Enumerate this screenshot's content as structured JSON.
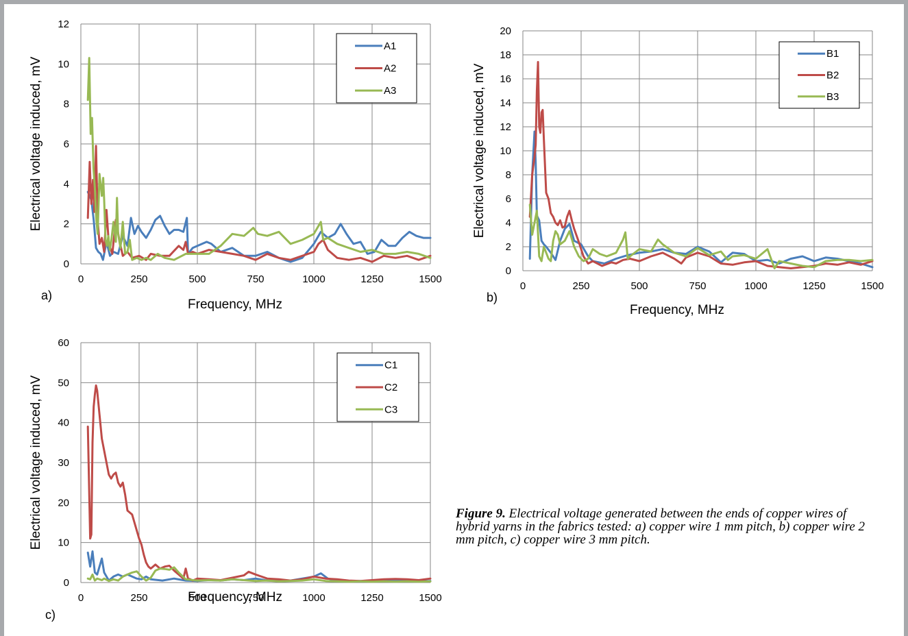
{
  "chart_data": [
    {
      "type": "line",
      "panel_label": "a)",
      "xlabel": "Frequency, MHz",
      "ylabel": "Electrical voltage induced, mV",
      "xlim": [
        0,
        1500
      ],
      "ylim": [
        0,
        12
      ],
      "xticks": [
        "0",
        "250",
        "500",
        "750",
        "1000",
        "1250",
        "1500"
      ],
      "yticks": [
        "0",
        "2",
        "4",
        "6",
        "8",
        "10",
        "12"
      ],
      "grid": true,
      "legend": "top-right",
      "series": [
        {
          "name": "A1",
          "color": "#4a7ebb",
          "x": [
            30,
            45,
            55,
            65,
            75,
            85,
            95,
            110,
            125,
            140,
            160,
            180,
            200,
            215,
            230,
            245,
            260,
            280,
            300,
            320,
            340,
            360,
            380,
            400,
            420,
            440,
            455,
            460,
            480,
            500,
            540,
            560,
            600,
            650,
            700,
            750,
            800,
            850,
            900,
            950,
            1000,
            1030,
            1060,
            1090,
            1115,
            1140,
            1170,
            1200,
            1230,
            1260,
            1290,
            1320,
            1350,
            1380,
            1410,
            1440,
            1470,
            1500
          ],
          "y": [
            3.6,
            3.2,
            2.2,
            0.8,
            0.6,
            0.5,
            0.2,
            1.1,
            0.4,
            0.6,
            0.5,
            1.4,
            0.9,
            2.3,
            1.5,
            1.9,
            1.6,
            1.3,
            1.7,
            2.2,
            2.4,
            1.9,
            1.5,
            1.7,
            1.7,
            1.6,
            2.3,
            0.5,
            0.8,
            0.9,
            1.1,
            1.0,
            0.6,
            0.8,
            0.4,
            0.4,
            0.6,
            0.3,
            0.1,
            0.3,
            1.0,
            1.6,
            1.3,
            1.5,
            2.0,
            1.5,
            1.0,
            1.1,
            0.5,
            0.6,
            1.2,
            0.9,
            0.9,
            1.3,
            1.6,
            1.4,
            1.3,
            1.3
          ]
        },
        {
          "name": "A2",
          "color": "#be4b48",
          "x": [
            30,
            38,
            45,
            52,
            58,
            65,
            72,
            80,
            90,
            100,
            110,
            120,
            135,
            150,
            165,
            180,
            200,
            220,
            250,
            280,
            300,
            340,
            380,
            420,
            440,
            450,
            460,
            480,
            500,
            550,
            600,
            650,
            700,
            750,
            800,
            850,
            900,
            950,
            1000,
            1020,
            1040,
            1060,
            1100,
            1150,
            1200,
            1250,
            1300,
            1350,
            1400,
            1450,
            1500
          ],
          "y": [
            2.3,
            5.1,
            3.0,
            4.2,
            2.6,
            5.9,
            2.2,
            1.0,
            1.3,
            0.6,
            2.7,
            1.0,
            0.5,
            2.2,
            1.2,
            0.4,
            0.6,
            0.3,
            0.4,
            0.2,
            0.5,
            0.4,
            0.4,
            0.9,
            0.7,
            1.1,
            0.5,
            0.6,
            0.5,
            0.7,
            0.6,
            0.5,
            0.4,
            0.2,
            0.5,
            0.3,
            0.2,
            0.4,
            0.6,
            1.0,
            1.2,
            0.7,
            0.3,
            0.2,
            0.3,
            0.1,
            0.4,
            0.3,
            0.4,
            0.2,
            0.4
          ]
        },
        {
          "name": "A3",
          "color": "#98b954",
          "x": [
            30,
            36,
            42,
            48,
            54,
            60,
            66,
            72,
            80,
            90,
            96,
            100,
            106,
            112,
            118,
            124,
            130,
            140,
            150,
            155,
            160,
            170,
            180,
            190,
            200,
            210,
            220,
            240,
            260,
            280,
            300,
            330,
            360,
            400,
            450,
            500,
            550,
            600,
            650,
            700,
            740,
            760,
            800,
            850,
            900,
            950,
            1000,
            1030,
            1040,
            1060,
            1100,
            1150,
            1200,
            1250,
            1300,
            1350,
            1400,
            1450,
            1500
          ],
          "y": [
            8.2,
            10.3,
            6.5,
            7.3,
            4.8,
            3.8,
            2.3,
            1.5,
            4.5,
            3.4,
            4.3,
            3.2,
            1.2,
            0.9,
            1.4,
            0.7,
            1.1,
            2.1,
            1.1,
            3.3,
            1.5,
            0.8,
            2.1,
            0.5,
            0.6,
            1.2,
            0.2,
            0.3,
            0.2,
            0.3,
            0.2,
            0.5,
            0.3,
            0.2,
            0.5,
            0.5,
            0.5,
            0.9,
            1.5,
            1.4,
            1.8,
            1.5,
            1.4,
            1.6,
            1.0,
            1.2,
            1.5,
            2.1,
            1.2,
            1.3,
            1.0,
            0.8,
            0.6,
            0.7,
            0.5,
            0.5,
            0.6,
            0.5,
            0.3
          ]
        }
      ]
    },
    {
      "type": "line",
      "panel_label": "b)",
      "xlabel": "Frequency, MHz",
      "ylabel": "Electrical voltage induced, mV",
      "xlim": [
        0,
        1500
      ],
      "ylim": [
        0,
        20
      ],
      "xticks": [
        "0",
        "250",
        "500",
        "750",
        "1000",
        "1250",
        "1500"
      ],
      "yticks": [
        "0",
        "2",
        "4",
        "6",
        "8",
        "10",
        "12",
        "14",
        "16",
        "18",
        "20"
      ],
      "grid": true,
      "legend": "top-right",
      "series": [
        {
          "name": "B1",
          "color": "#4a7ebb",
          "x": [
            30,
            40,
            50,
            55,
            60,
            70,
            80,
            90,
            100,
            120,
            140,
            160,
            180,
            200,
            220,
            250,
            280,
            300,
            350,
            400,
            450,
            500,
            550,
            600,
            650,
            700,
            750,
            800,
            850,
            900,
            950,
            1000,
            1050,
            1100,
            1150,
            1200,
            1250,
            1300,
            1350,
            1400,
            1450,
            1500
          ],
          "y": [
            1.0,
            8.0,
            11.6,
            9.0,
            4.6,
            4.2,
            2.5,
            2.2,
            2.0,
            1.5,
            0.9,
            2.5,
            3.5,
            3.9,
            2.5,
            2.2,
            1.2,
            0.8,
            0.6,
            1.0,
            1.3,
            1.5,
            1.6,
            1.8,
            1.5,
            1.4,
            2.0,
            1.6,
            0.7,
            1.5,
            1.4,
            0.8,
            0.9,
            0.6,
            1.0,
            1.2,
            0.8,
            1.1,
            1.0,
            0.8,
            0.6,
            0.3
          ]
        },
        {
          "name": "B2",
          "color": "#be4b48",
          "x": [
            30,
            40,
            50,
            55,
            60,
            65,
            70,
            75,
            80,
            85,
            90,
            100,
            110,
            120,
            130,
            140,
            150,
            160,
            170,
            180,
            190,
            200,
            210,
            220,
            240,
            260,
            280,
            300,
            340,
            380,
            400,
            430,
            460,
            500,
            550,
            600,
            650,
            680,
            700,
            750,
            800,
            850,
            900,
            950,
            1000,
            1050,
            1100,
            1150,
            1200,
            1250,
            1300,
            1350,
            1400,
            1450,
            1500
          ],
          "y": [
            4.5,
            8.0,
            9.5,
            10.5,
            15.0,
            17.4,
            12.0,
            11.5,
            13.2,
            13.4,
            11.0,
            6.5,
            6.0,
            4.8,
            4.5,
            4.0,
            3.8,
            4.2,
            3.6,
            3.7,
            4.5,
            5.0,
            4.2,
            3.5,
            2.4,
            1.2,
            0.6,
            0.8,
            0.4,
            0.7,
            0.6,
            0.9,
            1.0,
            0.8,
            1.2,
            1.5,
            1.0,
            0.6,
            1.1,
            1.5,
            1.2,
            0.6,
            0.5,
            0.7,
            0.8,
            0.4,
            0.3,
            0.2,
            0.3,
            0.4,
            0.6,
            0.5,
            0.7,
            0.5,
            0.8
          ]
        },
        {
          "name": "B3",
          "color": "#98b954",
          "x": [
            30,
            40,
            50,
            60,
            70,
            80,
            90,
            110,
            120,
            130,
            140,
            150,
            160,
            180,
            200,
            220,
            240,
            260,
            280,
            300,
            330,
            360,
            400,
            430,
            440,
            450,
            460,
            500,
            550,
            580,
            600,
            650,
            700,
            750,
            800,
            850,
            880,
            900,
            950,
            1000,
            1050,
            1080,
            1100,
            1150,
            1200,
            1250,
            1300,
            1350,
            1400,
            1450,
            1500
          ],
          "y": [
            5.5,
            3.0,
            4.0,
            5.0,
            1.2,
            0.8,
            2.0,
            1.0,
            0.8,
            2.5,
            3.3,
            3.0,
            2.2,
            2.5,
            3.3,
            2.0,
            1.2,
            0.8,
            1.0,
            1.8,
            1.4,
            1.2,
            1.5,
            2.6,
            3.2,
            1.0,
            1.2,
            1.8,
            1.6,
            2.6,
            2.2,
            1.5,
            1.2,
            1.9,
            1.3,
            1.6,
            0.9,
            1.2,
            1.3,
            1.0,
            1.8,
            0.2,
            0.8,
            0.6,
            0.4,
            0.3,
            0.8,
            0.9,
            0.9,
            0.8,
            0.9
          ]
        }
      ]
    },
    {
      "type": "line",
      "panel_label": "c)",
      "xlabel": "Frequency, MHz",
      "ylabel": "Electrical voltage induced, mV",
      "xlim": [
        0,
        1500
      ],
      "ylim": [
        0,
        60
      ],
      "xticks": [
        "0",
        "250",
        "500",
        "750",
        "1000",
        "1250",
        "1500"
      ],
      "yticks": [
        "0",
        "10",
        "20",
        "30",
        "40",
        "50",
        "60"
      ],
      "grid": true,
      "legend": "top-right",
      "series": [
        {
          "name": "C1",
          "color": "#4a7ebb",
          "x": [
            30,
            40,
            50,
            60,
            70,
            80,
            90,
            100,
            120,
            140,
            160,
            180,
            200,
            220,
            240,
            260,
            280,
            300,
            350,
            400,
            450,
            500,
            550,
            600,
            650,
            700,
            750,
            800,
            850,
            900,
            950,
            1000,
            1030,
            1060,
            1100,
            1150,
            1200,
            1250,
            1300,
            1350,
            1400,
            1450,
            1500
          ],
          "y": [
            7.5,
            4.0,
            7.8,
            2.5,
            2.0,
            4.0,
            6.0,
            2.5,
            0.5,
            1.5,
            2.0,
            1.5,
            2.0,
            1.5,
            1.0,
            0.8,
            1.5,
            0.8,
            0.5,
            1.0,
            0.5,
            0.4,
            0.6,
            0.5,
            0.8,
            0.6,
            1.0,
            0.5,
            0.4,
            0.5,
            1.0,
            1.5,
            2.3,
            1.0,
            0.5,
            0.3,
            0.4,
            0.3,
            0.5,
            0.4,
            0.5,
            0.3,
            0.4
          ]
        },
        {
          "name": "C2",
          "color": "#be4b48",
          "x": [
            30,
            35,
            40,
            45,
            50,
            55,
            60,
            65,
            70,
            75,
            80,
            90,
            100,
            110,
            120,
            130,
            140,
            150,
            160,
            170,
            180,
            190,
            200,
            210,
            220,
            230,
            240,
            250,
            260,
            270,
            280,
            290,
            300,
            320,
            340,
            360,
            380,
            400,
            420,
            440,
            450,
            460,
            470,
            480,
            500,
            550,
            600,
            650,
            700,
            720,
            750,
            800,
            850,
            900,
            950,
            1000,
            1050,
            1100,
            1150,
            1200,
            1250,
            1300,
            1350,
            1400,
            1450,
            1500
          ],
          "y": [
            39.0,
            25.0,
            11.0,
            12.0,
            35.0,
            44.0,
            47.0,
            49.3,
            48.0,
            45.0,
            42.0,
            36.0,
            33.0,
            30.0,
            27.0,
            26.0,
            27.0,
            27.5,
            25.0,
            24.0,
            25.0,
            22.0,
            18.0,
            17.5,
            17.0,
            15.0,
            13.0,
            11.0,
            9.5,
            7.0,
            5.0,
            4.0,
            3.5,
            4.5,
            3.5,
            4.0,
            4.2,
            3.0,
            2.0,
            1.0,
            3.5,
            1.0,
            0.8,
            0.5,
            1.0,
            0.8,
            0.6,
            1.2,
            1.8,
            2.7,
            2.0,
            1.0,
            0.8,
            0.5,
            0.8,
            1.5,
            1.0,
            0.8,
            0.5,
            0.4,
            0.6,
            0.8,
            0.9,
            0.8,
            0.6,
            1.0
          ]
        },
        {
          "name": "C3",
          "color": "#98b954",
          "x": [
            30,
            40,
            50,
            60,
            70,
            80,
            90,
            100,
            120,
            140,
            160,
            180,
            200,
            220,
            240,
            260,
            280,
            300,
            320,
            340,
            360,
            380,
            400,
            420,
            450,
            500,
            550,
            600,
            650,
            700,
            750,
            800,
            850,
            900,
            950,
            1000,
            1050,
            1100,
            1150,
            1200,
            1250,
            1300,
            1350,
            1400,
            1450,
            1500
          ],
          "y": [
            1.0,
            0.8,
            2.0,
            0.5,
            1.0,
            0.8,
            0.6,
            1.0,
            0.4,
            0.8,
            0.5,
            1.5,
            2.0,
            2.5,
            2.8,
            1.5,
            0.5,
            1.2,
            3.0,
            3.5,
            3.4,
            3.2,
            3.8,
            2.5,
            0.8,
            0.5,
            0.6,
            0.5,
            0.8,
            0.6,
            0.4,
            0.5,
            0.3,
            0.4,
            0.5,
            0.8,
            0.4,
            0.3,
            0.2,
            0.3,
            0.2,
            0.3,
            0.2,
            0.3,
            0.2,
            0.3
          ]
        }
      ]
    }
  ],
  "caption": {
    "figure_label": "Figure 9.",
    "text": " Electrical voltage generated between the ends of copper wires of hybrid yarns in the fabrics tested: a) copper wire 1 mm pitch, b) copper wire 2 mm pitch, c) copper wire 3 mm pitch."
  }
}
